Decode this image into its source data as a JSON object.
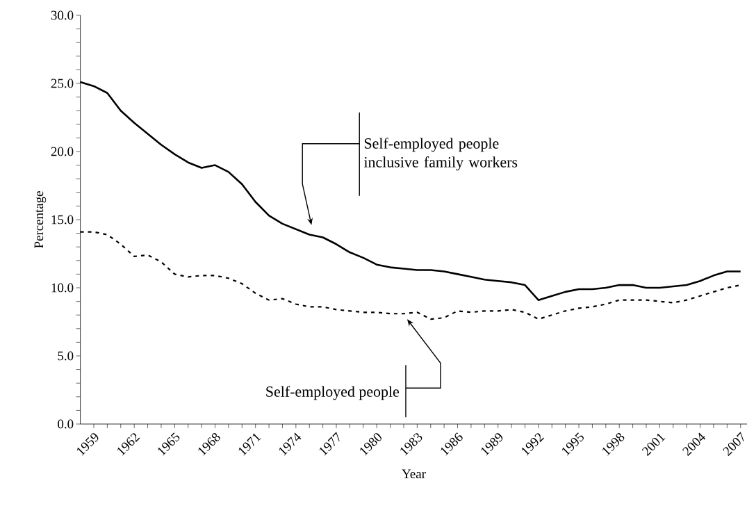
{
  "chart_data": {
    "type": "line",
    "xlabel": "Year",
    "ylabel": "Percentage",
    "x": [
      1958,
      1959,
      1960,
      1961,
      1962,
      1963,
      1964,
      1965,
      1966,
      1967,
      1968,
      1969,
      1970,
      1971,
      1972,
      1973,
      1974,
      1975,
      1976,
      1977,
      1978,
      1979,
      1980,
      1981,
      1982,
      1983,
      1984,
      1985,
      1986,
      1987,
      1988,
      1989,
      1990,
      1991,
      1992,
      1993,
      1994,
      1995,
      1996,
      1997,
      1998,
      1999,
      2000,
      2001,
      2002,
      2003,
      2004,
      2005,
      2006,
      2007
    ],
    "series": [
      {
        "color": "#000000",
        "line_style": "solid",
        "values": [
          25.1,
          24.8,
          24.3,
          23.0,
          22.1,
          21.3,
          20.5,
          19.8,
          19.2,
          18.8,
          19.0,
          18.5,
          17.6,
          16.3,
          15.3,
          14.7,
          14.3,
          13.9,
          13.7,
          13.2,
          12.6,
          12.2,
          11.7,
          11.5,
          11.4,
          11.3,
          11.3,
          11.2,
          11.0,
          10.8,
          10.6,
          10.5,
          10.4,
          10.2,
          9.1,
          9.4,
          9.7,
          9.9,
          9.9,
          10.0,
          10.2,
          10.2,
          10.0,
          10.0,
          10.1,
          10.2,
          10.5,
          10.9,
          11.2,
          11.2
        ]
      },
      {
        "color": "#000000",
        "line_style": "dotted",
        "values": [
          14.1,
          14.1,
          13.9,
          13.2,
          12.3,
          12.4,
          11.9,
          11.0,
          10.8,
          10.9,
          10.9,
          10.7,
          10.3,
          9.6,
          9.1,
          9.2,
          8.8,
          8.6,
          8.6,
          8.4,
          8.3,
          8.2,
          8.2,
          8.1,
          8.1,
          8.2,
          7.7,
          7.8,
          8.3,
          8.2,
          8.3,
          8.3,
          8.4,
          8.2,
          7.7,
          8.0,
          8.3,
          8.5,
          8.6,
          8.8,
          9.1,
          9.1,
          9.1,
          9.0,
          8.9,
          9.1,
          9.4,
          9.7,
          10.0,
          10.2
        ]
      }
    ],
    "xlim": [
      1958,
      2007.5
    ],
    "xticks": [
      1959,
      1962,
      1965,
      1968,
      1971,
      1974,
      1977,
      1980,
      1983,
      1986,
      1989,
      1992,
      1995,
      1998,
      2001,
      2004,
      2007
    ],
    "ylim": [
      0,
      30
    ],
    "yticks": [
      {
        "value": 0,
        "label": "0.0"
      },
      {
        "value": 5,
        "label": "5.0"
      },
      {
        "value": 10,
        "label": "10.0"
      },
      {
        "value": 15,
        "label": "15.0"
      },
      {
        "value": 20,
        "label": "20.0"
      },
      {
        "value": 25,
        "label": "25.0"
      },
      {
        "value": 30,
        "label": "30.0"
      }
    ],
    "grid": false,
    "marker": "none",
    "annotations": [
      "Self-employed people inclusive family workers",
      "Self-employed people"
    ]
  }
}
